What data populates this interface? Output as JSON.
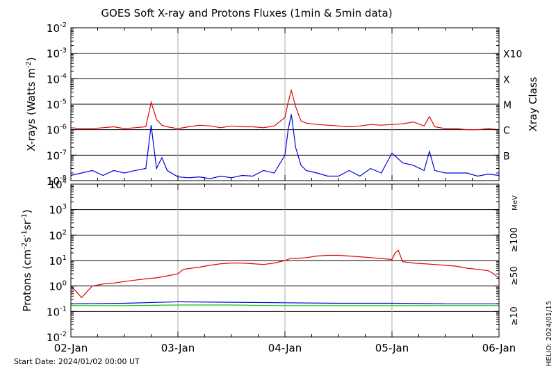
{
  "title": "GOES Soft X-ray and Protons Fluxes   (1min & 5min data)",
  "footer": {
    "start_date": "Start Date: 2024/01/02 00:00 UT",
    "helio_stamp": "HELIO: 2024/01/15"
  },
  "chart_data": [
    {
      "type": "line",
      "name": "xray-panel",
      "ylabel_parts": [
        "X-rays (Watts m",
        "-2",
        ")"
      ],
      "yscale": "log",
      "ylim": [
        1e-08,
        0.01
      ],
      "ytick_exponents": [
        "-2",
        "-3",
        "-4",
        "-5",
        "-6",
        "-7",
        "-8"
      ],
      "right_axis_label": "Xray Class",
      "xray_classes": [
        "X10",
        "X",
        "M",
        "C",
        "B"
      ],
      "grid": true,
      "colors": {
        "long_channel": "#e00000",
        "short_channel": "#0000dd"
      },
      "series": [
        {
          "color": "red",
          "x": [
            0,
            0.1,
            0.2,
            0.3,
            0.4,
            0.5,
            0.6,
            0.7,
            0.75,
            0.8,
            0.85,
            0.9,
            1.0,
            1.1,
            1.2,
            1.3,
            1.4,
            1.5,
            1.6,
            1.7,
            1.8,
            1.9,
            2.0,
            2.03,
            2.06,
            2.1,
            2.15,
            2.2,
            2.3,
            2.4,
            2.5,
            2.6,
            2.7,
            2.8,
            2.9,
            3.0,
            3.1,
            3.2,
            3.3,
            3.35,
            3.4,
            3.5,
            3.6,
            3.7,
            3.8,
            3.9,
            4.0
          ],
          "y": [
            1.2e-06,
            1.1e-06,
            1.1e-06,
            1.2e-06,
            1.3e-06,
            1.1e-06,
            1.2e-06,
            1.3e-06,
            1.2e-05,
            2.5e-06,
            1.5e-06,
            1.3e-06,
            1.1e-06,
            1.3e-06,
            1.5e-06,
            1.4e-06,
            1.2e-06,
            1.4e-06,
            1.3e-06,
            1.3e-06,
            1.2e-06,
            1.4e-06,
            3e-06,
            1.2e-05,
            3.5e-05,
            8e-06,
            2.2e-06,
            1.8e-06,
            1.6e-06,
            1.5e-06,
            1.4e-06,
            1.3e-06,
            1.4e-06,
            1.6e-06,
            1.5e-06,
            1.6e-06,
            1.7e-06,
            2e-06,
            1.4e-06,
            3.3e-06,
            1.3e-06,
            1.1e-06,
            1.1e-06,
            1e-06,
            1e-06,
            1.1e-06,
            1e-06
          ]
        },
        {
          "color": "blue",
          "x": [
            0,
            0.1,
            0.2,
            0.3,
            0.4,
            0.5,
            0.6,
            0.7,
            0.75,
            0.8,
            0.85,
            0.9,
            1.0,
            1.1,
            1.2,
            1.3,
            1.4,
            1.5,
            1.6,
            1.7,
            1.8,
            1.9,
            2.0,
            2.03,
            2.06,
            2.1,
            2.15,
            2.2,
            2.3,
            2.4,
            2.5,
            2.6,
            2.7,
            2.8,
            2.9,
            3.0,
            3.1,
            3.2,
            3.3,
            3.35,
            3.4,
            3.5,
            3.6,
            3.7,
            3.8,
            3.9,
            4.0
          ],
          "y": [
            1.6e-08,
            2e-08,
            2.5e-08,
            1.6e-08,
            2.5e-08,
            2e-08,
            2.5e-08,
            3e-08,
            1.5e-06,
            3e-08,
            8e-08,
            2.5e-08,
            1.4e-08,
            1.3e-08,
            1.4e-08,
            1.2e-08,
            1.5e-08,
            1.3e-08,
            1.6e-08,
            1.5e-08,
            2.5e-08,
            2e-08,
            1e-07,
            1e-06,
            4e-06,
            2e-07,
            4e-08,
            2.5e-08,
            2e-08,
            1.5e-08,
            1.5e-08,
            2.5e-08,
            1.5e-08,
            3e-08,
            2e-08,
            1.2e-07,
            5e-08,
            4e-08,
            2.5e-08,
            1.4e-07,
            2.5e-08,
            2e-08,
            2e-08,
            2e-08,
            1.5e-08,
            1.8e-08,
            1.6e-08
          ]
        }
      ]
    },
    {
      "type": "line",
      "name": "proton-panel",
      "ylabel_parts": [
        "Protons (cm",
        "-2",
        "s",
        "-1",
        "sr",
        "-1",
        ")"
      ],
      "yscale": "log",
      "ylim": [
        0.01,
        10000.0
      ],
      "ytick_exponents": [
        "4",
        "3",
        "2",
        "1",
        "0",
        "-1",
        "-2"
      ],
      "right_labels": [
        {
          "text": "MeV",
          "color": "#000000"
        },
        {
          "text": "≥100",
          "color": "#00c800"
        },
        {
          "text": "≥50",
          "color": "#0000dd"
        },
        {
          "text": "≥10",
          "color": "#e00000"
        }
      ],
      "threshold": 10,
      "grid": true,
      "categories": [
        "02-Jan",
        "03-Jan",
        "04-Jan",
        "05-Jan",
        "06-Jan"
      ],
      "series": [
        {
          "label": "≥10",
          "color": "red",
          "x": [
            0,
            0.05,
            0.1,
            0.15,
            0.2,
            0.3,
            0.4,
            0.5,
            0.6,
            0.7,
            0.8,
            0.9,
            1.0,
            1.05,
            1.2,
            1.3,
            1.4,
            1.5,
            1.6,
            1.7,
            1.8,
            1.9,
            2.0,
            2.05,
            2.1,
            2.2,
            2.3,
            2.4,
            2.5,
            2.6,
            2.7,
            2.8,
            2.9,
            3.0,
            3.03,
            3.06,
            3.1,
            3.2,
            3.3,
            3.4,
            3.5,
            3.6,
            3.7,
            3.8,
            3.9,
            3.95,
            4.0
          ],
          "y": [
            1.0,
            0.6,
            0.35,
            0.6,
            1.0,
            1.2,
            1.3,
            1.5,
            1.7,
            1.9,
            2.1,
            2.5,
            3.0,
            4.5,
            5.5,
            6.5,
            7.5,
            8.0,
            8.0,
            7.5,
            7.0,
            8.0,
            10,
            12,
            12,
            13,
            15,
            16,
            16,
            15,
            14,
            13,
            12,
            11,
            20,
            25,
            9,
            8,
            7.5,
            7,
            6.5,
            6,
            5,
            4.5,
            4,
            3,
            2
          ]
        },
        {
          "label": "≥50",
          "color": "blue",
          "x": [
            0,
            0.5,
            1.0,
            1.5,
            2.0,
            2.5,
            3.0,
            3.5,
            4.0
          ],
          "y": [
            0.2,
            0.21,
            0.24,
            0.23,
            0.22,
            0.21,
            0.21,
            0.2,
            0.2
          ]
        },
        {
          "label": "≥100",
          "color": "green",
          "x": [
            0,
            0.5,
            1.0,
            1.5,
            2.0,
            2.5,
            3.0,
            3.5,
            4.0
          ],
          "y": [
            0.17,
            0.17,
            0.18,
            0.18,
            0.17,
            0.17,
            0.17,
            0.17,
            0.17
          ]
        }
      ]
    }
  ]
}
